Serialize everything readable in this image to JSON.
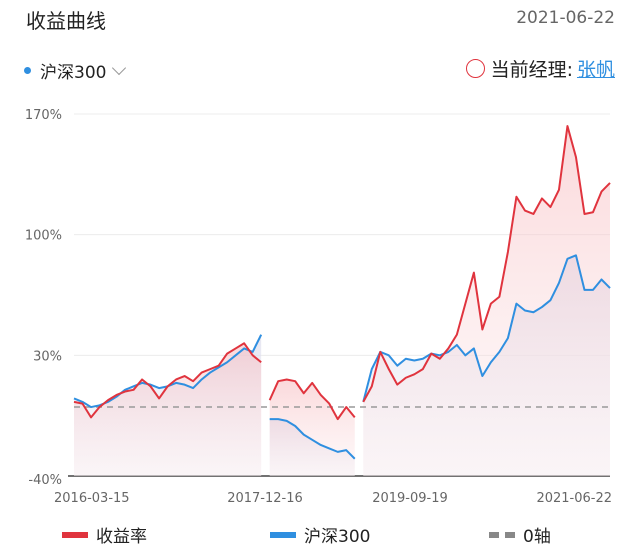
{
  "header": {
    "title": "收益曲线",
    "date": "2021-06-22"
  },
  "benchmark_selector": {
    "label": "沪深300",
    "icon": "chevron-down-icon"
  },
  "manager": {
    "label": "当前经理:",
    "name": "张帆",
    "icon": "circle-icon"
  },
  "colors": {
    "fund": "#e0343e",
    "benchmark": "#2f8fe0",
    "zero_axis": "#999999"
  },
  "chart_data": {
    "type": "line",
    "ylim": [
      -40,
      170
    ],
    "y_ticks": [
      "170%",
      "100%",
      "30%",
      "-40%"
    ],
    "y_tick_values": [
      170,
      100,
      30,
      -40
    ],
    "x_tick_labels": [
      "2016-03-15",
      "2017-12-16",
      "2019-09-19",
      "2021-06-22"
    ],
    "grid": true,
    "legend_position": "bottom",
    "legend": [
      "收益率",
      "沪深300",
      "0轴"
    ],
    "periods": [
      {
        "x": [
          "2016-03",
          "2016-04",
          "2016-05",
          "2016-06",
          "2016-07",
          "2016-08",
          "2016-09",
          "2016-10",
          "2016-11",
          "2016-12",
          "2017-01",
          "2017-02",
          "2017-03",
          "2017-04",
          "2017-05",
          "2017-06",
          "2017-07",
          "2017-08",
          "2017-09",
          "2017-10",
          "2017-11",
          "2017-12",
          "2018-01"
        ],
        "fund": [
          3,
          2,
          -6,
          0,
          4,
          7,
          9,
          10,
          16,
          12,
          5,
          12,
          16,
          18,
          15,
          20,
          22,
          24,
          31,
          34,
          37,
          30,
          26
        ],
        "benchmark": [
          5,
          3,
          0,
          1,
          3,
          6,
          10,
          12,
          14,
          13,
          11,
          12,
          14,
          13,
          11,
          16,
          20,
          23,
          26,
          30,
          34,
          32,
          42
        ]
      },
      {
        "x": [
          "2018-02",
          "2018-03",
          "2018-04",
          "2018-05",
          "2018-06",
          "2018-07",
          "2018-08",
          "2018-09",
          "2018-10",
          "2018-11",
          "2018-12"
        ],
        "fund": [
          4,
          15,
          16,
          15,
          8,
          14,
          7,
          2,
          -7,
          0,
          -6
        ],
        "benchmark": [
          -7,
          -7,
          -8,
          -11,
          -16,
          -19,
          -22,
          -24,
          -26,
          -25,
          -30
        ]
      },
      {
        "x": [
          "2019-01",
          "2019-02",
          "2019-03",
          "2019-04",
          "2019-05",
          "2019-06",
          "2019-07",
          "2019-08",
          "2019-09",
          "2019-10",
          "2019-11",
          "2019-12",
          "2020-01",
          "2020-02",
          "2020-03",
          "2020-04",
          "2020-05",
          "2020-06",
          "2020-07",
          "2020-08",
          "2020-09",
          "2020-10",
          "2020-11",
          "2020-12",
          "2021-01",
          "2021-02",
          "2021-03",
          "2021-04",
          "2021-05",
          "2021-06"
        ],
        "fund": [
          3,
          12,
          32,
          22,
          13,
          17,
          19,
          22,
          31,
          28,
          34,
          42,
          60,
          78,
          45,
          60,
          64,
          90,
          122,
          114,
          112,
          121,
          116,
          126,
          163,
          145,
          112,
          113,
          125,
          130
        ],
        "benchmark": [
          3,
          22,
          32,
          30,
          24,
          28,
          27,
          28,
          31,
          30,
          32,
          36,
          30,
          34,
          18,
          26,
          32,
          40,
          60,
          56,
          55,
          58,
          62,
          72,
          86,
          88,
          68,
          68,
          74,
          69
        ]
      }
    ]
  },
  "legend": {
    "fund": "收益率",
    "benchmark": "沪深300",
    "zero": "0轴"
  }
}
